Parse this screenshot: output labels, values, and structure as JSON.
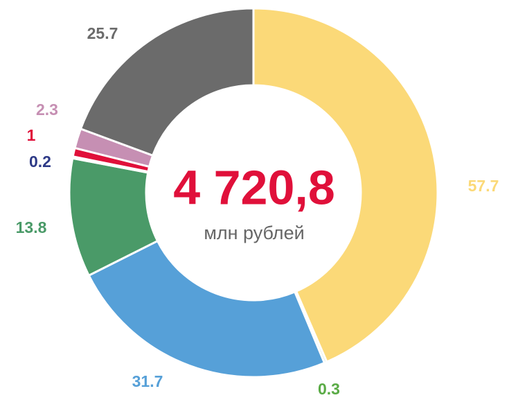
{
  "chart_data": {
    "type": "donut",
    "center_label": "4 720,8",
    "center_sublabel": "млн рублей",
    "values": [
      57.7,
      0.3,
      31.7,
      13.8,
      0.2,
      1.0,
      2.3,
      25.7
    ],
    "colors": [
      "#fbd978",
      "#d9ead3",
      "#56a0d8",
      "#4a9a68",
      "#2e3a87",
      "#e0103a",
      "#c68fb3",
      "#6b6b6b"
    ],
    "label_colors": [
      "#fbd978",
      "#5aab46",
      "#56a0d8",
      "#4a9a68",
      "#2e3a87",
      "#e0103a",
      "#c68fb3",
      "#6b6b6b"
    ]
  }
}
